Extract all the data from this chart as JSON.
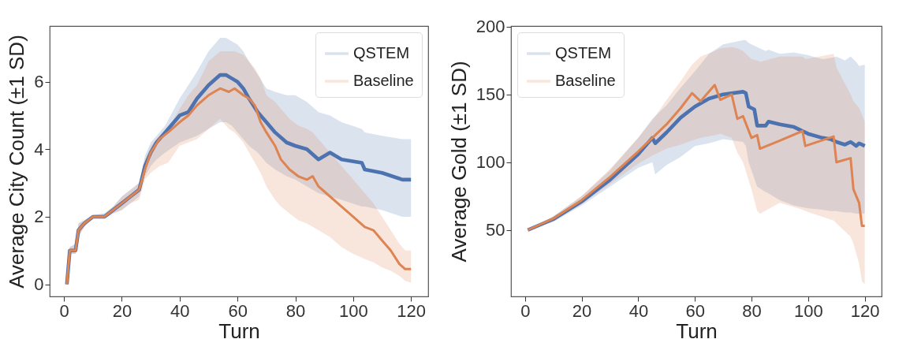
{
  "chart_data": [
    {
      "type": "line",
      "xlabel": "Turn",
      "ylabel": "Average City Count (±1 SD)",
      "xlim": [
        -4.95,
        125.95
      ],
      "xticks": [
        0,
        20,
        40,
        60,
        80,
        100,
        120
      ],
      "ylim": [
        -0.36,
        7.65
      ],
      "yticks": [
        0,
        2,
        4,
        6
      ],
      "legend": "top right",
      "series": [
        {
          "name": "QSTEM",
          "color": "#4c72b0",
          "x": [
            1,
            2,
            4,
            5,
            7,
            10,
            14,
            17,
            20,
            23,
            26,
            28,
            30,
            32,
            35,
            40,
            43,
            46,
            50,
            54,
            56,
            58,
            60,
            62,
            64,
            67,
            70,
            73,
            77,
            80,
            84,
            88,
            92,
            96,
            103,
            104,
            110,
            117,
            120
          ],
          "values": [
            0,
            1.0,
            1.0,
            1.6,
            1.8,
            2.0,
            2.0,
            2.2,
            2.4,
            2.6,
            2.8,
            3.5,
            3.9,
            4.2,
            4.5,
            5.0,
            5.1,
            5.5,
            5.9,
            6.2,
            6.2,
            6.1,
            6.0,
            5.8,
            5.5,
            5.1,
            4.8,
            4.5,
            4.2,
            4.1,
            4.0,
            3.7,
            3.9,
            3.7,
            3.6,
            3.4,
            3.3,
            3.1,
            3.1
          ],
          "upper": [
            0,
            1.1,
            1.2,
            1.8,
            1.9,
            2.05,
            2.1,
            2.3,
            2.6,
            2.8,
            3.0,
            3.8,
            4.2,
            4.4,
            4.7,
            5.5,
            5.9,
            6.3,
            6.9,
            7.3,
            7.3,
            7.2,
            7.1,
            6.9,
            6.6,
            6.2,
            5.8,
            5.7,
            5.6,
            5.6,
            5.4,
            5.1,
            5.0,
            4.8,
            4.6,
            4.5,
            4.4,
            4.3,
            4.3
          ],
          "lower": [
            0,
            0.9,
            0.9,
            1.4,
            1.7,
            1.95,
            1.95,
            2.1,
            2.2,
            2.4,
            2.6,
            3.2,
            3.5,
            3.7,
            3.9,
            4.2,
            4.3,
            4.4,
            4.6,
            4.8,
            4.8,
            4.7,
            4.5,
            4.3,
            4.1,
            3.9,
            3.6,
            3.4,
            3.2,
            3.1,
            2.9,
            2.7,
            2.6,
            2.5,
            2.3,
            2.3,
            2.2,
            2.0,
            2.0
          ]
        },
        {
          "name": "Baseline",
          "color": "#dd8452",
          "x": [
            1,
            2,
            4,
            5,
            7,
            10,
            14,
            17,
            20,
            23,
            26,
            28,
            30,
            33,
            36,
            40,
            43,
            46,
            50,
            54,
            57,
            59,
            62,
            64,
            66,
            68,
            70,
            73,
            75,
            78,
            81,
            84,
            86,
            88,
            92,
            96,
            100,
            104,
            107,
            110,
            113,
            116,
            118,
            120
          ],
          "values": [
            0,
            1.0,
            1.0,
            1.6,
            1.8,
            2.0,
            2.0,
            2.2,
            2.4,
            2.6,
            2.8,
            3.4,
            3.9,
            4.3,
            4.5,
            4.8,
            5.0,
            5.3,
            5.6,
            5.8,
            5.7,
            5.8,
            5.6,
            5.5,
            5.3,
            4.8,
            4.5,
            4.1,
            3.7,
            3.4,
            3.2,
            3.1,
            3.2,
            2.9,
            2.6,
            2.3,
            2.0,
            1.7,
            1.6,
            1.3,
            1.0,
            0.6,
            0.45,
            0.45
          ],
          "upper": [
            0,
            1.1,
            1.2,
            1.8,
            1.9,
            2.05,
            2.1,
            2.3,
            2.6,
            2.8,
            3.0,
            3.7,
            4.1,
            4.4,
            4.6,
            5.2,
            5.6,
            5.9,
            6.6,
            6.9,
            6.9,
            6.9,
            6.8,
            6.6,
            6.4,
            6.1,
            5.6,
            5.4,
            5.2,
            4.9,
            4.7,
            4.6,
            4.5,
            4.3,
            3.9,
            3.5,
            3.1,
            2.7,
            2.4,
            2.0,
            1.6,
            1.2,
            1.0,
            1.0
          ],
          "lower": [
            0,
            0.9,
            0.9,
            1.4,
            1.7,
            1.95,
            1.95,
            2.1,
            2.2,
            2.4,
            2.5,
            3.1,
            3.3,
            3.5,
            3.6,
            4.1,
            4.2,
            4.3,
            4.6,
            4.9,
            4.6,
            4.5,
            4.2,
            3.9,
            3.6,
            3.3,
            2.9,
            2.5,
            2.3,
            2.1,
            1.9,
            1.8,
            1.7,
            1.6,
            1.4,
            1.1,
            0.9,
            0.75,
            0.65,
            0.5,
            0.4,
            0.25,
            0.1,
            0.05
          ]
        }
      ]
    },
    {
      "type": "line",
      "xlabel": "Turn",
      "ylabel": "Average Gold (±1 SD)",
      "xlim": [
        -4.95,
        125.95
      ],
      "xticks": [
        0,
        20,
        40,
        60,
        80,
        100,
        120
      ],
      "ylim": [
        1,
        200.5
      ],
      "yticks": [
        50,
        100,
        150,
        200
      ],
      "legend": "top left",
      "series": [
        {
          "name": "QSTEM",
          "color": "#4c72b0",
          "x": [
            1,
            10,
            20,
            30,
            40,
            45,
            46,
            50,
            55,
            60,
            65,
            70,
            77,
            78,
            79,
            81,
            82,
            85,
            86,
            90,
            95,
            100,
            105,
            108,
            110,
            113,
            115,
            117,
            118,
            120
          ],
          "values": [
            50,
            58,
            71,
            87,
            106,
            118,
            114,
            122,
            133,
            141,
            147,
            150,
            152,
            151,
            141,
            139,
            127,
            127,
            130,
            128,
            126,
            121,
            118,
            117,
            115,
            113,
            115,
            112,
            114,
            112
          ],
          "upper": [
            50,
            60,
            75,
            94,
            118,
            132,
            134,
            142,
            155,
            167,
            180,
            187,
            190,
            190,
            188,
            186,
            185,
            182,
            183,
            180,
            181,
            179,
            176,
            177,
            178,
            175,
            178,
            174,
            171,
            172
          ],
          "lower": [
            50,
            56,
            68,
            82,
            96,
            100,
            91,
            98,
            104,
            112,
            114,
            117,
            115,
            112,
            100,
            88,
            82,
            78,
            77,
            72,
            68,
            66,
            65,
            64,
            64,
            63,
            63,
            62,
            62,
            62
          ]
        },
        {
          "name": "Baseline",
          "color": "#dd8452",
          "x": [
            1,
            10,
            20,
            30,
            40,
            45,
            50,
            55,
            59,
            62,
            67,
            69,
            73,
            75,
            77,
            80,
            82,
            83,
            90,
            98,
            99,
            109,
            110,
            115,
            116,
            118,
            119,
            120
          ],
          "values": [
            50,
            58.5,
            72,
            89,
            108,
            118,
            128,
            140,
            151,
            145,
            157,
            146,
            150,
            132,
            134,
            118,
            120,
            110,
            116,
            123,
            112,
            119,
            100,
            103,
            80,
            70,
            53,
            53
          ],
          "upper": [
            50,
            60,
            75,
            95,
            118,
            131,
            146,
            160,
            172,
            178,
            182,
            184,
            185,
            184,
            182,
            176,
            175,
            174,
            178,
            178,
            176,
            180,
            170,
            150,
            145,
            140,
            135,
            130
          ],
          "lower": [
            50,
            57,
            69,
            84,
            99,
            105,
            110,
            113,
            116,
            118,
            120,
            121,
            118,
            107,
            100,
            80,
            64,
            62,
            70,
            65,
            64,
            57,
            55,
            45,
            40,
            25,
            12,
            10
          ]
        }
      ]
    }
  ]
}
